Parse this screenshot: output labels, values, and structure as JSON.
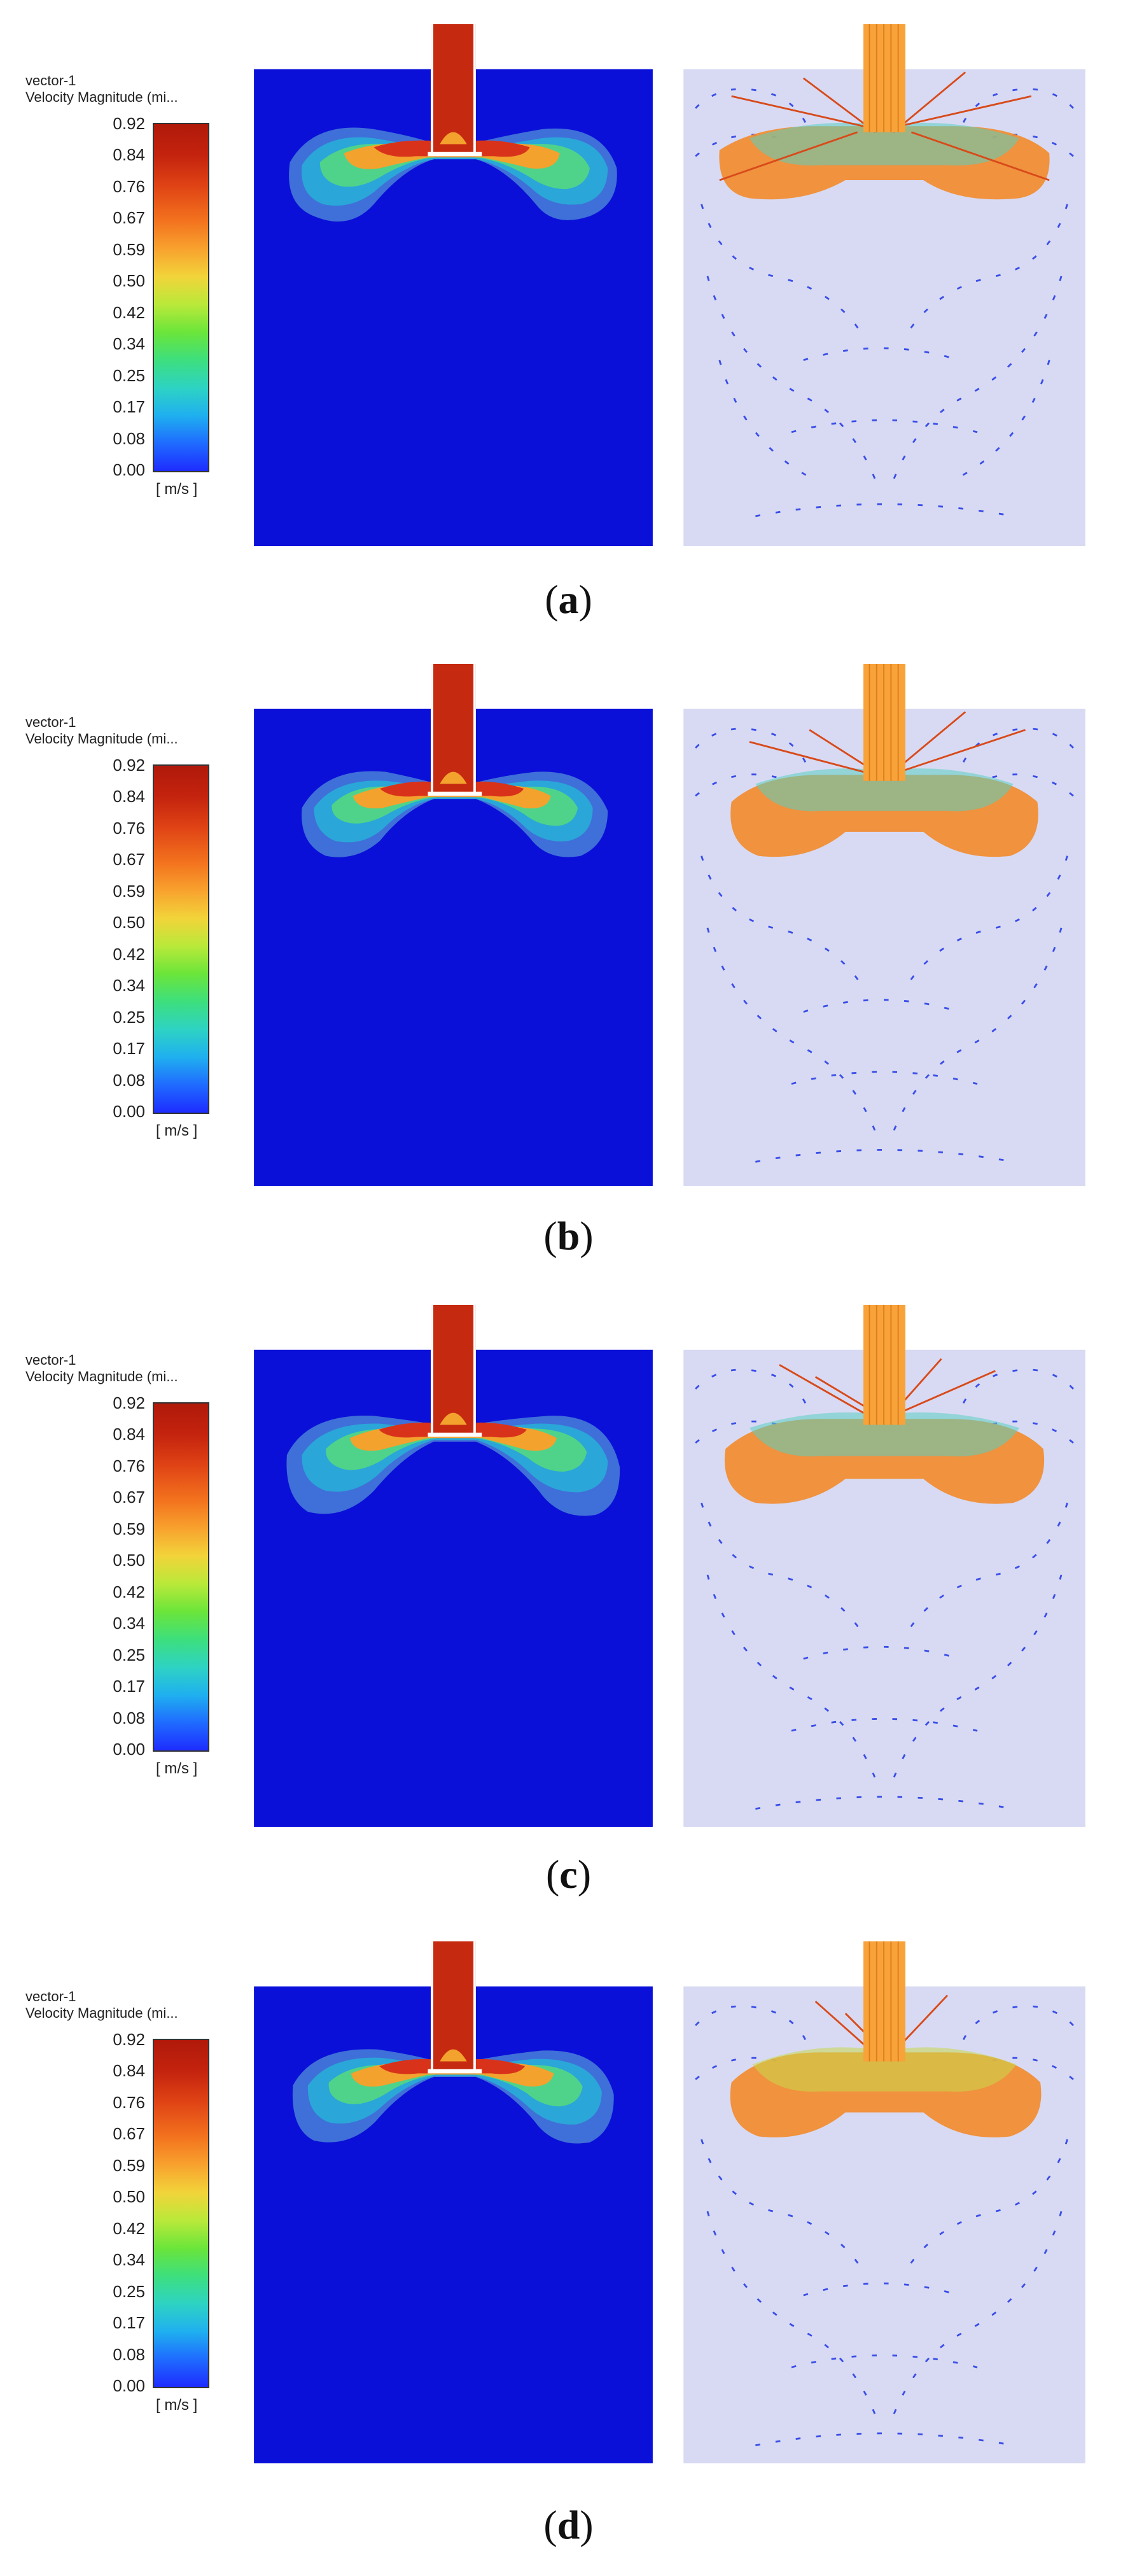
{
  "legend": {
    "title_line1": "vector-1",
    "title_line2": "Velocity Magnitude (mi...",
    "ticks": [
      "0.92",
      "0.84",
      "0.76",
      "0.67",
      "0.59",
      "0.50",
      "0.42",
      "0.34",
      "0.25",
      "0.17",
      "0.08",
      "0.00"
    ],
    "unit": "[ m/s ]"
  },
  "panels": [
    {
      "caption_open": "(",
      "caption_letter": "a",
      "caption_close": ")"
    },
    {
      "caption_open": "(",
      "caption_letter": "b",
      "caption_close": ")"
    },
    {
      "caption_open": "(",
      "caption_letter": "c",
      "caption_close": ")"
    },
    {
      "caption_open": "(",
      "caption_letter": "d",
      "caption_close": ")"
    }
  ],
  "colors": {
    "domain_blue": "#0a10d8",
    "vector_bg": "#d8daf3",
    "jet_red": "#c52a10",
    "arrow_blue": "#3a4ee8",
    "arrow_orange": "#f59a2a",
    "arrow_cyan": "#35c8d8"
  }
}
